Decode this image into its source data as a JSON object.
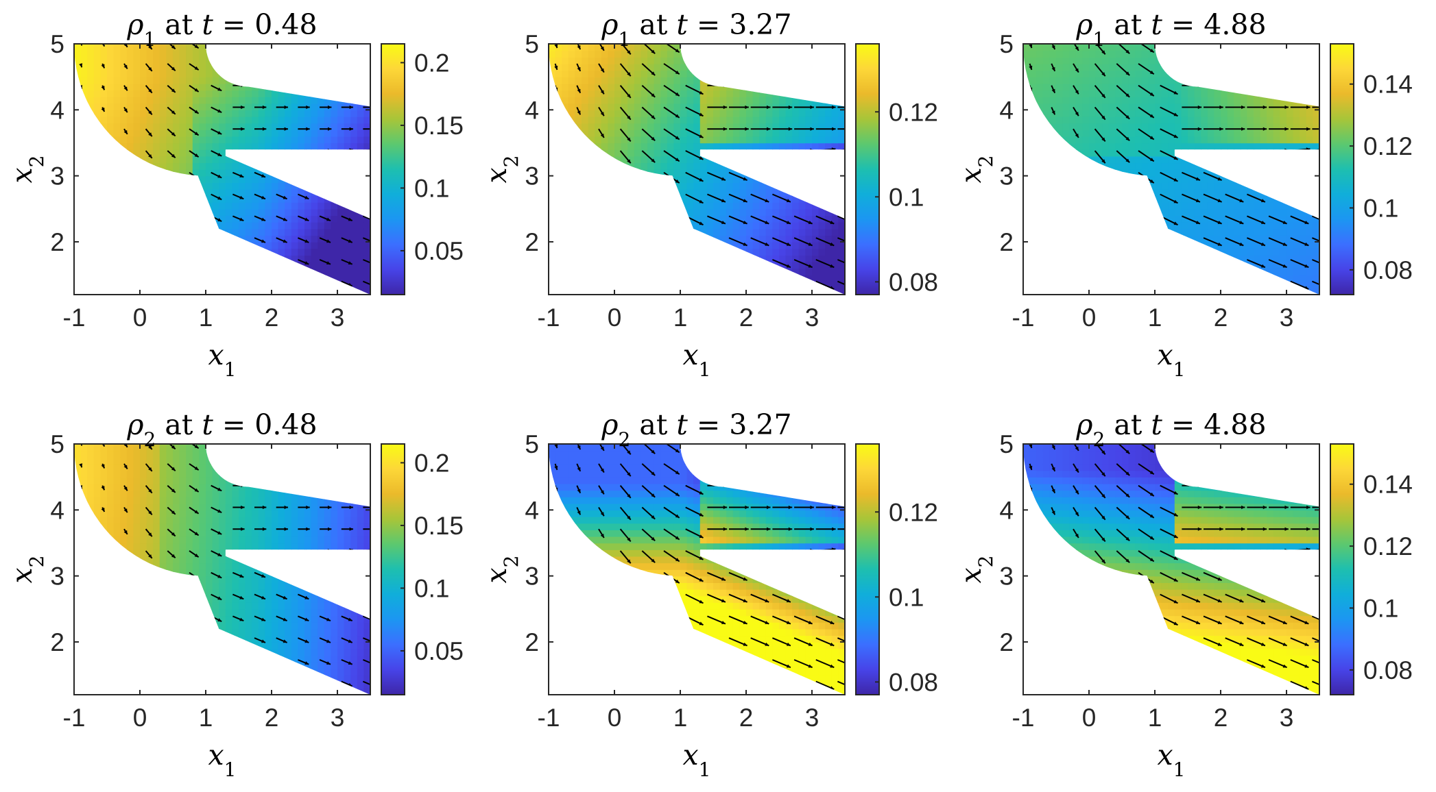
{
  "figure": {
    "panel_titles": [
      [
        "ρ",
        "1",
        " at ",
        "t",
        " = 0.48"
      ],
      [
        "ρ",
        "1",
        " at ",
        "t",
        " = 3.27"
      ],
      [
        "ρ",
        "1",
        " at ",
        "t",
        " = 4.88"
      ],
      [
        "ρ",
        "2",
        " at ",
        "t",
        " = 0.48"
      ],
      [
        "ρ",
        "2",
        " at ",
        "t",
        " = 3.27"
      ],
      [
        "ρ",
        "2",
        " at ",
        "t",
        " = 4.88"
      ]
    ]
  },
  "chart_data": [
    {
      "type": "heatmap",
      "title": "ρ1 at t = 0.48",
      "field": "rho1",
      "time": 0.48,
      "xlabel": "x1",
      "ylabel": "x2",
      "xlim": [
        -1,
        3.5
      ],
      "ylim": [
        1.2,
        5
      ],
      "xticks": [
        "-1",
        "0",
        "1",
        "2",
        "3"
      ],
      "yticks": [
        "2",
        "3",
        "4",
        "5"
      ],
      "colorbar": {
        "min": 0.015,
        "max": 0.215,
        "ticks": [
          "0.05",
          "0.1",
          "0.15",
          "0.2"
        ]
      },
      "quiver": true
    },
    {
      "type": "heatmap",
      "title": "ρ1 at t = 3.27",
      "field": "rho1",
      "time": 3.27,
      "xlabel": "x1",
      "ylabel": "x2",
      "xlim": [
        -1,
        3.5
      ],
      "ylim": [
        1.2,
        5
      ],
      "xticks": [
        "-1",
        "0",
        "1",
        "2",
        "3"
      ],
      "yticks": [
        "2",
        "3",
        "4",
        "5"
      ],
      "colorbar": {
        "min": 0.077,
        "max": 0.136,
        "ticks": [
          "0.08",
          "0.1",
          "0.12"
        ]
      },
      "quiver": true
    },
    {
      "type": "heatmap",
      "title": "ρ1 at t = 4.88",
      "field": "rho1",
      "time": 4.88,
      "xlabel": "x1",
      "ylabel": "x2",
      "xlim": [
        -1,
        3.5
      ],
      "ylim": [
        1.2,
        5
      ],
      "xticks": [
        "-1",
        "0",
        "1",
        "2",
        "3"
      ],
      "yticks": [
        "2",
        "3",
        "4",
        "5"
      ],
      "colorbar": {
        "min": 0.072,
        "max": 0.153,
        "ticks": [
          "0.08",
          "0.1",
          "0.12",
          "0.14"
        ]
      },
      "quiver": true
    },
    {
      "type": "heatmap",
      "title": "ρ2 at t = 0.48",
      "field": "rho2",
      "time": 0.48,
      "xlabel": "x1",
      "ylabel": "x2",
      "xlim": [
        -1,
        3.5
      ],
      "ylim": [
        1.2,
        5
      ],
      "xticks": [
        "-1",
        "0",
        "1",
        "2",
        "3"
      ],
      "yticks": [
        "2",
        "3",
        "4",
        "5"
      ],
      "colorbar": {
        "min": 0.015,
        "max": 0.215,
        "ticks": [
          "0.05",
          "0.1",
          "0.15",
          "0.2"
        ]
      },
      "quiver": true
    },
    {
      "type": "heatmap",
      "title": "ρ2 at t = 3.27",
      "field": "rho2",
      "time": 3.27,
      "xlabel": "x1",
      "ylabel": "x2",
      "xlim": [
        -1,
        3.5
      ],
      "ylim": [
        1.2,
        5
      ],
      "xticks": [
        "-1",
        "0",
        "1",
        "2",
        "3"
      ],
      "yticks": [
        "2",
        "3",
        "4",
        "5"
      ],
      "colorbar": {
        "min": 0.077,
        "max": 0.136,
        "ticks": [
          "0.08",
          "0.1",
          "0.12"
        ]
      },
      "quiver": true
    },
    {
      "type": "heatmap",
      "title": "ρ2 at t = 4.88",
      "field": "rho2",
      "time": 4.88,
      "xlabel": "x1",
      "ylabel": "x2",
      "xlim": [
        -1,
        3.5
      ],
      "ylim": [
        1.2,
        5
      ],
      "xticks": [
        "-1",
        "0",
        "1",
        "2",
        "3"
      ],
      "yticks": [
        "2",
        "3",
        "4",
        "5"
      ],
      "colorbar": {
        "min": 0.072,
        "max": 0.153,
        "ticks": [
          "0.08",
          "0.1",
          "0.12",
          "0.14"
        ]
      },
      "quiver": true
    }
  ],
  "colormap": [
    "#3e26a8",
    "#4744e8",
    "#3b6fff",
    "#1c96f2",
    "#10aeda",
    "#1ebfaf",
    "#5cc86f",
    "#a7c539",
    "#ebba2b",
    "#fdd738",
    "#f9fb15"
  ]
}
